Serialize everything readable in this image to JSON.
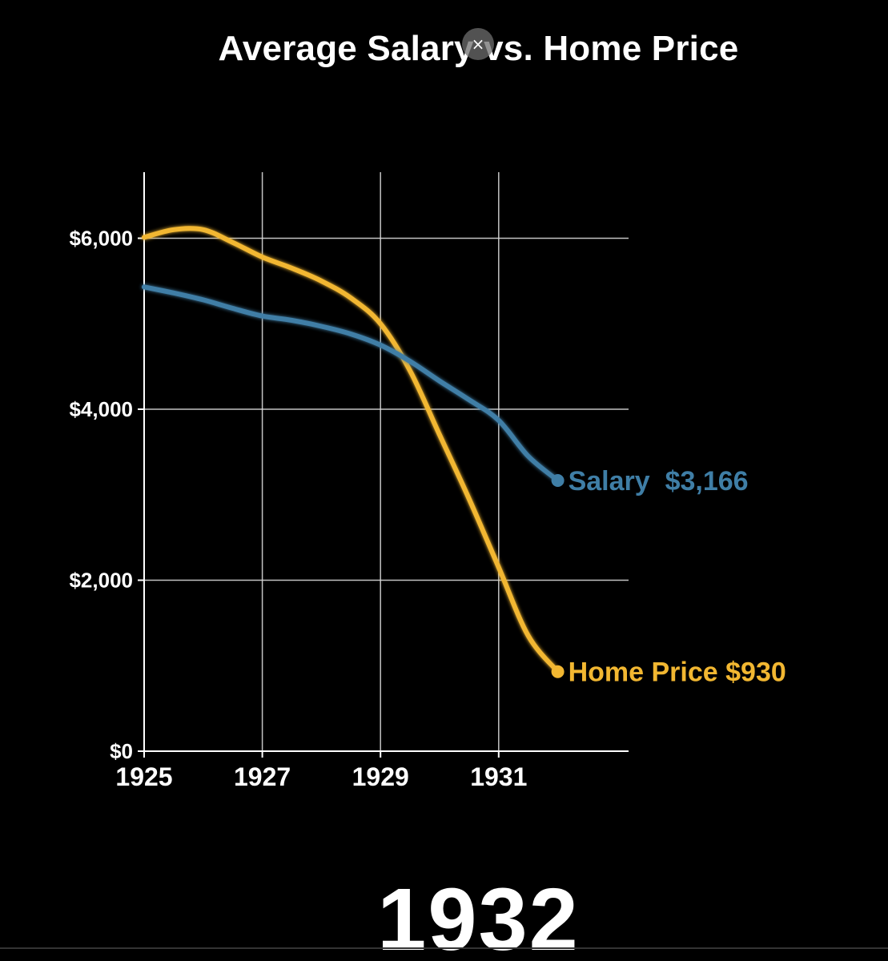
{
  "title": "Average Salary vs. Home Price",
  "overlay": {
    "close_symbol": "×"
  },
  "current_year": "1932",
  "colors": {
    "salary": "#3f7ea6",
    "home_price": "#f2b731",
    "grid": "#d9d9d9",
    "background": "#000000"
  },
  "chart_data": {
    "type": "line",
    "title": "Average Salary vs. Home Price",
    "xlabel": "",
    "ylabel": "",
    "xlim": [
      1925,
      1933
    ],
    "ylim": [
      0,
      6800
    ],
    "x_ticks": [
      1925,
      1927,
      1929,
      1931
    ],
    "x_tick_labels": [
      "1925",
      "1927",
      "1929",
      "1931"
    ],
    "y_ticks": [
      0,
      2000,
      4000,
      6000
    ],
    "y_tick_labels": [
      "$0",
      "$2,000",
      "$4,000",
      "$6,000"
    ],
    "grid": true,
    "series": [
      {
        "name": "Home Price",
        "color": "#f2b731",
        "end_label": "Home Price $930",
        "points": [
          [
            1925,
            6010
          ],
          [
            1925.5,
            6100
          ],
          [
            1926,
            6100
          ],
          [
            1926.5,
            5950
          ],
          [
            1927,
            5780
          ],
          [
            1927.5,
            5650
          ],
          [
            1928,
            5500
          ],
          [
            1928.5,
            5300
          ],
          [
            1929,
            5000
          ],
          [
            1929.5,
            4450
          ],
          [
            1930,
            3700
          ],
          [
            1930.5,
            2950
          ],
          [
            1931,
            2150
          ],
          [
            1931.5,
            1350
          ],
          [
            1932,
            930
          ]
        ]
      },
      {
        "name": "Salary",
        "color": "#3f7ea6",
        "end_label": "Salary  $3,166",
        "points": [
          [
            1925,
            5430
          ],
          [
            1925.5,
            5360
          ],
          [
            1926,
            5280
          ],
          [
            1926.5,
            5180
          ],
          [
            1927,
            5090
          ],
          [
            1927.5,
            5040
          ],
          [
            1928,
            4970
          ],
          [
            1928.5,
            4880
          ],
          [
            1929,
            4750
          ],
          [
            1929.5,
            4560
          ],
          [
            1930,
            4330
          ],
          [
            1930.5,
            4110
          ],
          [
            1931,
            3870
          ],
          [
            1931.5,
            3450
          ],
          [
            1932,
            3166
          ]
        ]
      }
    ]
  }
}
